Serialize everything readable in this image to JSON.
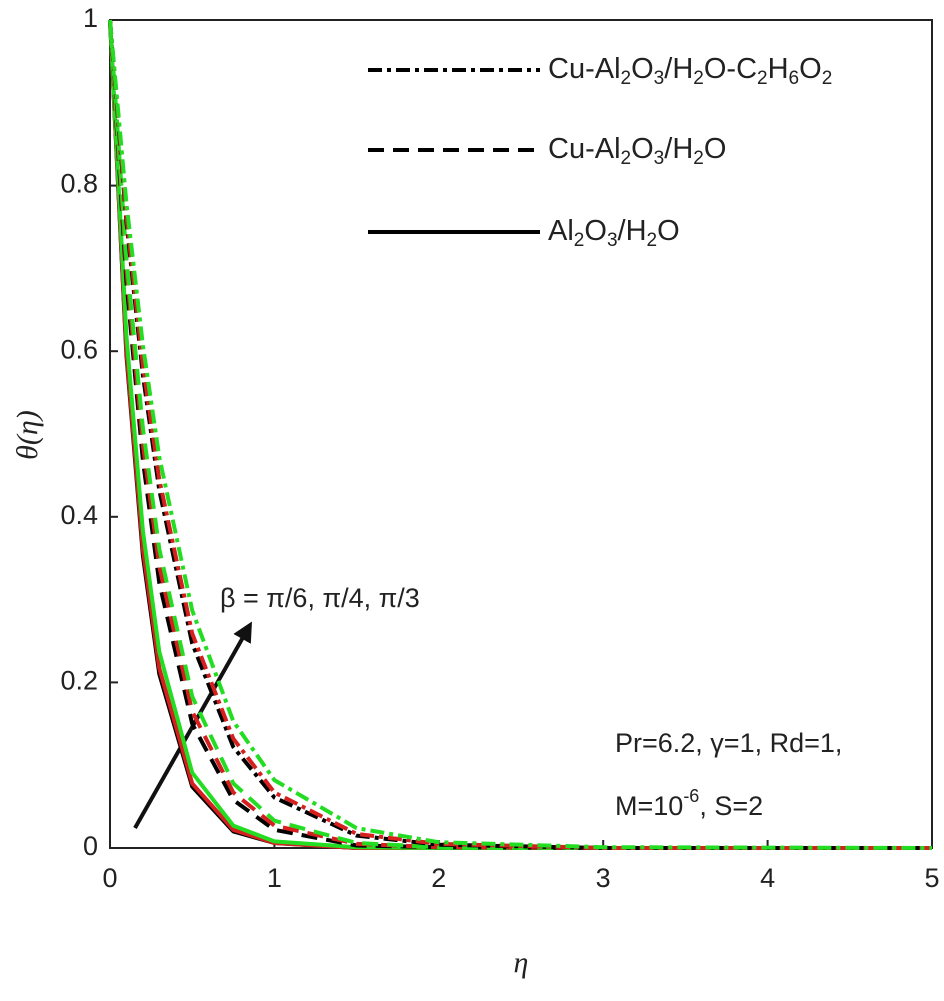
{
  "chart_data": {
    "type": "line",
    "xlabel": "η",
    "ylabel": "θ(η)",
    "xlim": [
      0,
      5
    ],
    "ylim": [
      0,
      1
    ],
    "xticks": [
      0,
      1,
      2,
      3,
      4,
      5
    ],
    "yticks": [
      0,
      0.2,
      0.4,
      0.6,
      0.8,
      1
    ],
    "x": [
      0,
      0.1,
      0.2,
      0.3,
      0.5,
      0.75,
      1,
      1.5,
      2,
      3,
      5
    ],
    "legend": [
      {
        "name": "Cu-Al2O3/H2O-C2H6O2",
        "dash": "dashdot"
      },
      {
        "name": "Cu-Al2O3/H2O",
        "dash": "dashed"
      },
      {
        "name": "Al2O3/H2O",
        "dash": "solid"
      }
    ],
    "series": [
      {
        "dash": "solid",
        "color": "#000000",
        "values": [
          1,
          0.595,
          0.353,
          0.21,
          0.074,
          0.02,
          0.006,
          0,
          0,
          0,
          0
        ]
      },
      {
        "dash": "solid",
        "color": "#d62020",
        "values": [
          1,
          0.6,
          0.361,
          0.217,
          0.078,
          0.022,
          0.006,
          0,
          0,
          0,
          0
        ]
      },
      {
        "dash": "solid",
        "color": "#22dd22",
        "values": [
          1,
          0.619,
          0.383,
          0.237,
          0.091,
          0.027,
          0.008,
          0.001,
          0,
          0,
          0
        ]
      },
      {
        "dash": "dashed",
        "color": "#000000",
        "values": [
          1,
          0.684,
          0.468,
          0.32,
          0.15,
          0.058,
          0.022,
          0.003,
          0.001,
          0,
          0
        ]
      },
      {
        "dash": "dashed",
        "color": "#d62020",
        "values": [
          1,
          0.698,
          0.487,
          0.34,
          0.165,
          0.067,
          0.027,
          0.005,
          0.001,
          0,
          0
        ]
      },
      {
        "dash": "dashed",
        "color": "#22dd22",
        "values": [
          1,
          0.712,
          0.507,
          0.361,
          0.183,
          0.078,
          0.033,
          0.006,
          0.001,
          0,
          0
        ]
      },
      {
        "dash": "dashdot",
        "color": "#000000",
        "values": [
          1,
          0.756,
          0.571,
          0.432,
          0.247,
          0.122,
          0.061,
          0.015,
          0.004,
          0,
          0
        ]
      },
      {
        "dash": "dashdot",
        "color": "#d62020",
        "values": [
          1,
          0.763,
          0.583,
          0.445,
          0.259,
          0.132,
          0.067,
          0.017,
          0.005,
          0,
          0
        ]
      },
      {
        "dash": "dashdot",
        "color": "#22dd22",
        "values": [
          1,
          0.779,
          0.607,
          0.472,
          0.287,
          0.153,
          0.082,
          0.024,
          0.007,
          0.001,
          0
        ]
      }
    ],
    "annotations": [
      "β = π/6, π/4, π/3",
      "Pr=6.2, γ=1, Rd=1,",
      "M=10-6, S=2"
    ]
  }
}
